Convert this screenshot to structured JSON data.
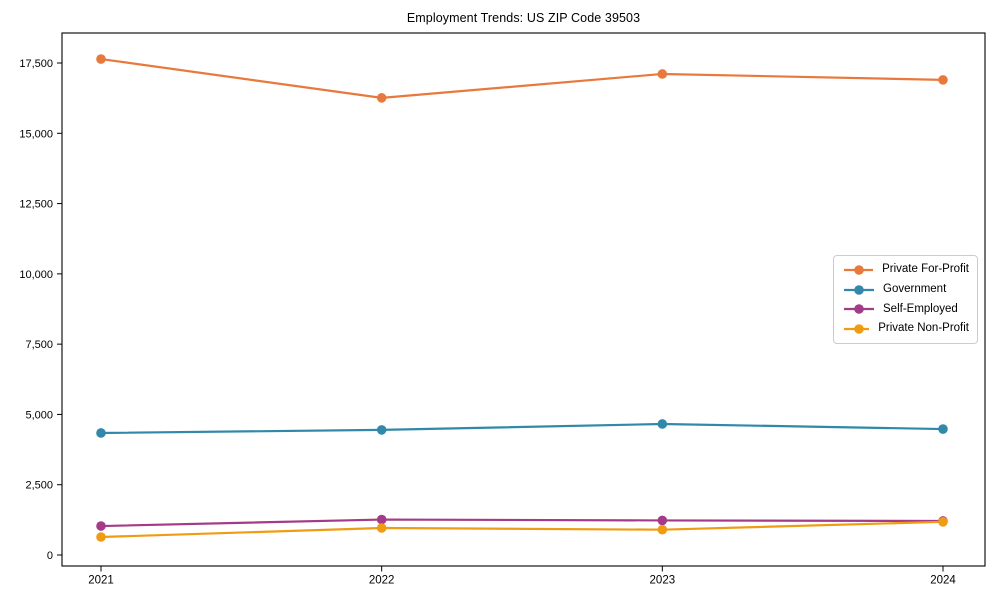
{
  "chart_data": {
    "type": "line",
    "title": "Employment Trends: US ZIP Code 39503",
    "xlabel": "",
    "ylabel": "",
    "categories": [
      "2021",
      "2022",
      "2023",
      "2024"
    ],
    "series": [
      {
        "name": "Private For-Profit",
        "color": "#E8793D",
        "values": [
          17640,
          16260,
          17110,
          16900
        ]
      },
      {
        "name": "Government",
        "color": "#3188A8",
        "values": [
          4340,
          4450,
          4660,
          4480
        ]
      },
      {
        "name": "Self-Employed",
        "color": "#A33B87",
        "values": [
          1030,
          1260,
          1230,
          1210
        ]
      },
      {
        "name": "Private Non-Profit",
        "color": "#F09C13",
        "values": [
          640,
          960,
          900,
          1180
        ]
      }
    ],
    "ylim": [
      0,
      17500
    ],
    "yticks": [
      0,
      2500,
      5000,
      7500,
      10000,
      12500,
      15000,
      17500
    ],
    "ytick_labels": [
      "0",
      "2,500",
      "5,000",
      "7,500",
      "10,000",
      "12,500",
      "15,000",
      "17,500"
    ],
    "grid": false,
    "legend_position": "center right",
    "frame": {
      "stroke": "#000000"
    },
    "background": "#ffffff"
  }
}
